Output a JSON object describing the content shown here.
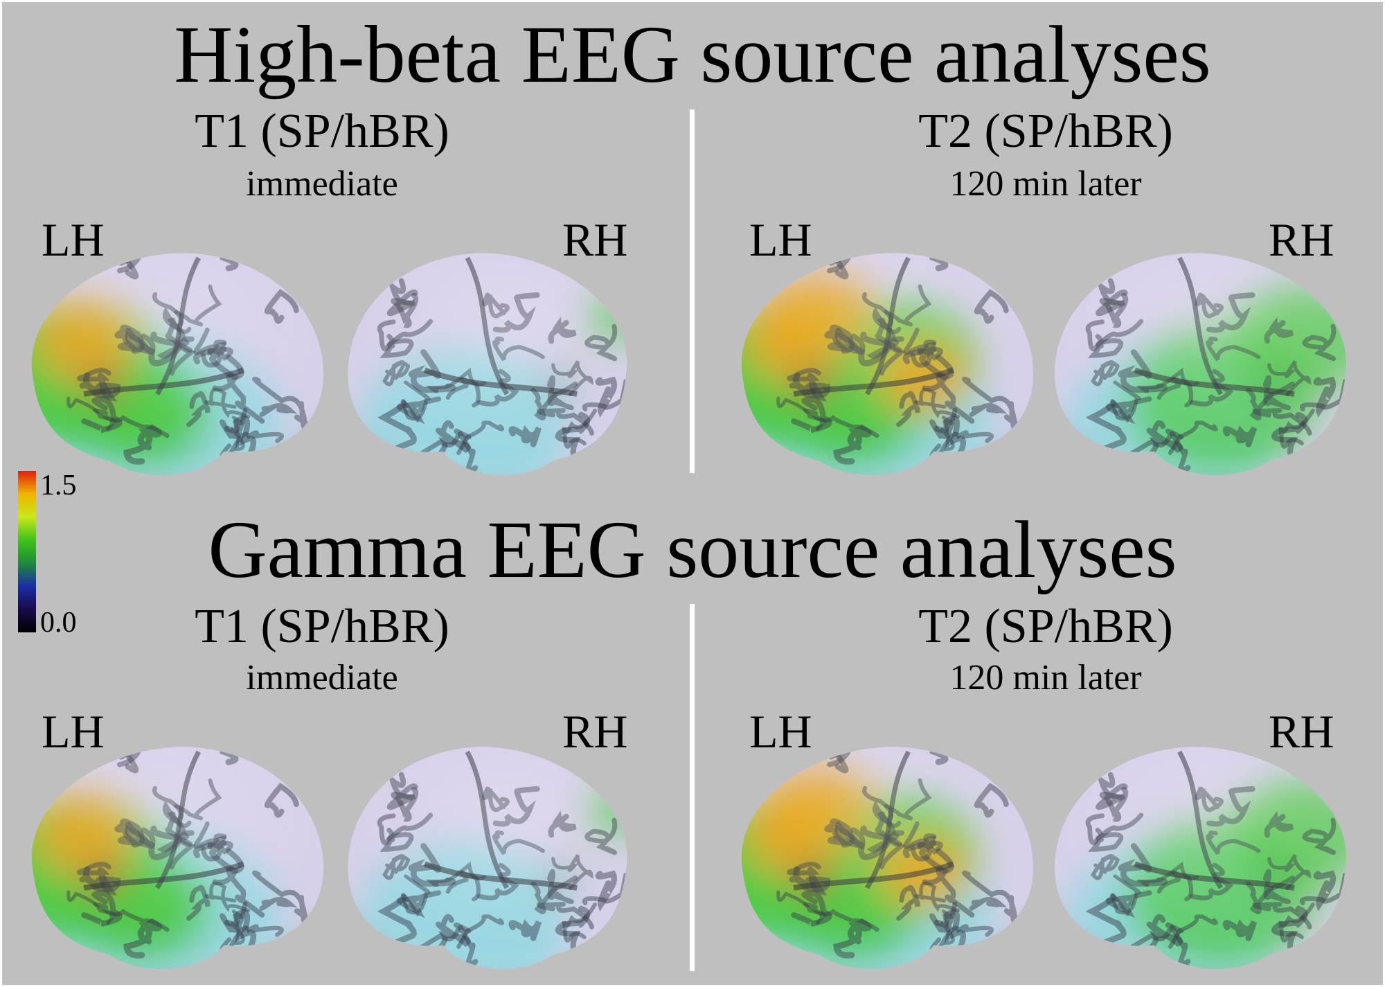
{
  "panels": [
    {
      "title": "High-beta EEG source analyses",
      "conditions": [
        {
          "label": "T1 (SP/hBR)",
          "timing": "immediate",
          "left_hemisphere": "LH",
          "right_hemisphere": "RH"
        },
        {
          "label": "T2 (SP/hBR)",
          "timing": "120 min later",
          "left_hemisphere": "LH",
          "right_hemisphere": "RH"
        }
      ]
    },
    {
      "title": "Gamma EEG source analyses",
      "conditions": [
        {
          "label": "T1 (SP/hBR)",
          "timing": "immediate",
          "left_hemisphere": "LH",
          "right_hemisphere": "RH"
        },
        {
          "label": "T2 (SP/hBR)",
          "timing": "120 min later",
          "left_hemisphere": "LH",
          "right_hemisphere": "RH"
        }
      ]
    }
  ],
  "colorbar": {
    "max_label": "1.5",
    "min_label": "0.0",
    "colors": [
      "#000000",
      "#1a0a4a",
      "#1b2ea8",
      "#1f8a3a",
      "#3fc21a",
      "#c8e81a",
      "#f0b400",
      "#e02010"
    ]
  },
  "colors": {
    "background": "#bfbfbf",
    "divider": "#ffffff",
    "cortex_base": "#d8d0ea",
    "low_activation": "#8fd8e0",
    "medium_activation": "#46c83c",
    "high_activation": "#e8a010",
    "peak_activation": "#b01010"
  }
}
